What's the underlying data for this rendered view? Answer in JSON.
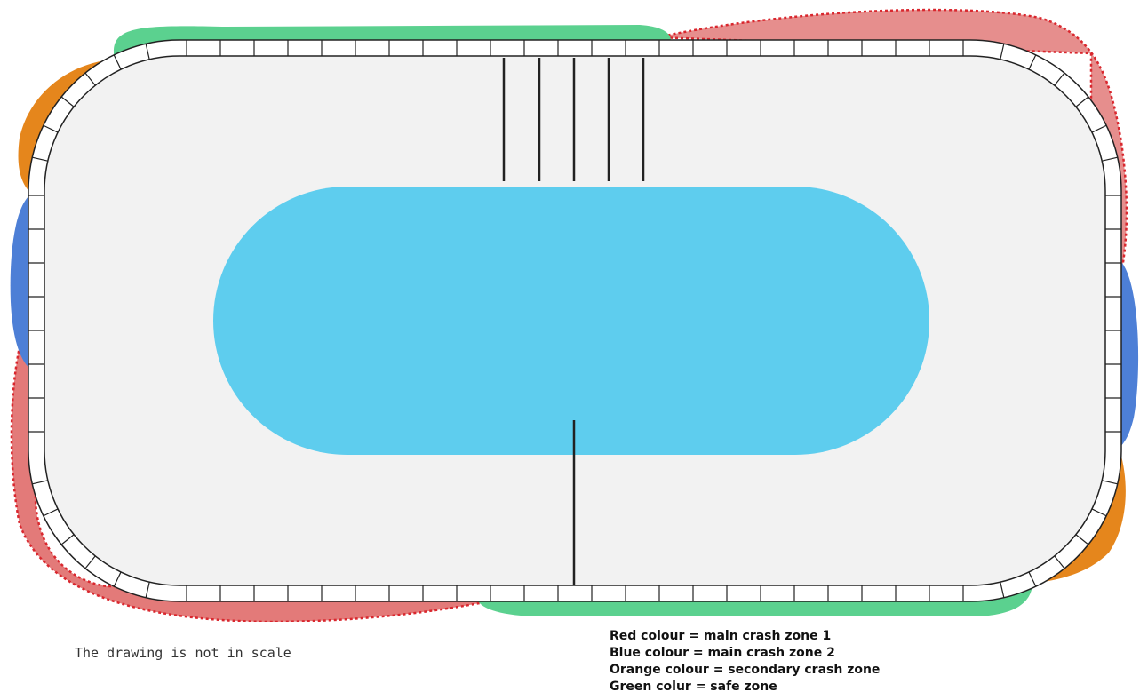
{
  "note": "The drawing is not in scale",
  "legend": [
    "Red colour = main crash zone 1",
    "Blue colour = main crash zone 2",
    "Orange colour = secondary crash zone",
    "Green colur = safe zone"
  ],
  "colors": {
    "red_zone": "#e27a79",
    "red_border": "#d9272e",
    "blue_zone": "#4d7fd6",
    "orange_zone": "#e5861c",
    "green_zone": "#5bd18f",
    "infield": "#5ecdee",
    "track": "#f2f2f2",
    "barrier": "#ffffff",
    "outline": "#222222"
  }
}
